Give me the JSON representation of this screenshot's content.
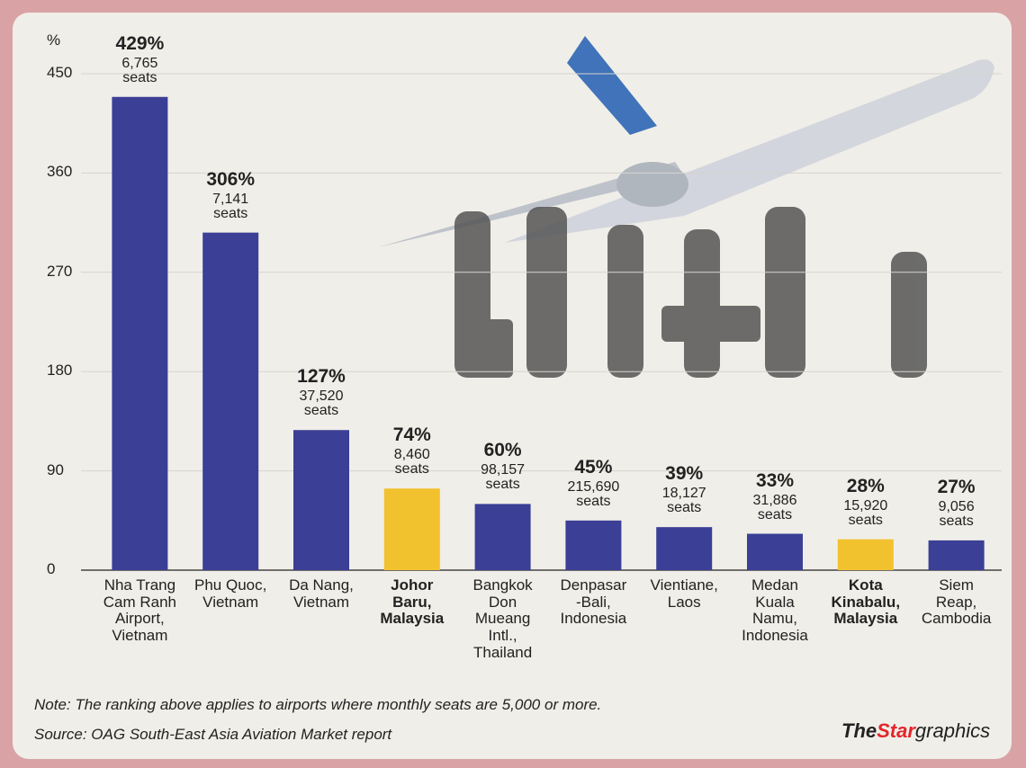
{
  "chart_data": {
    "type": "bar",
    "y_label": "%",
    "categories": [
      "Nha Trang\nCam Ranh\nAirport,\nVietnam",
      "Phu Quoc,\nVietnam",
      "Da Nang,\nVietnam",
      "Johor\nBaru,\nMalaysia",
      "Bangkok\nDon\nMueang\nIntl.,\nThailand",
      "Denpasar\n-Bali,\nIndonesia",
      "Vientiane,\nLaos",
      "Medan\nKuala\nNamu,\nIndonesia",
      "Kota\nKinabalu,\nMalaysia",
      "Siem\nReap,\nCambodia"
    ],
    "values": [
      429,
      306,
      127,
      74,
      60,
      45,
      39,
      33,
      28,
      27
    ],
    "value_labels": [
      "429%",
      "306%",
      "127%",
      "74%",
      "60%",
      "45%",
      "39%",
      "33%",
      "28%",
      "27%"
    ],
    "seat_labels": [
      "6,765\nseats",
      "7,141\nseats",
      "37,520\nseats",
      "8,460\nseats",
      "98,157\nseats",
      "215,690\nseats",
      "18,127\nseats",
      "31,886\nseats",
      "15,920\nseats",
      "9,056\nseats"
    ],
    "colors": [
      "#3b3f96",
      "#3b3f96",
      "#3b3f96",
      "#f2c12e",
      "#3b3f96",
      "#3b3f96",
      "#3b3f96",
      "#3b3f96",
      "#f2c12e",
      "#3b3f96"
    ],
    "bold_categories": [
      false,
      false,
      false,
      true,
      false,
      false,
      false,
      false,
      true,
      false
    ],
    "ylim": [
      0,
      450
    ],
    "yticks": [
      0,
      90,
      180,
      270,
      360,
      450
    ],
    "grid": true,
    "note": "Note: The ranking above applies to airports where monthly seats are 5,000 or more.",
    "source": "Source: OAG South-East Asia Aviation Market report",
    "credit": [
      "The",
      "Star",
      "graphics"
    ]
  }
}
